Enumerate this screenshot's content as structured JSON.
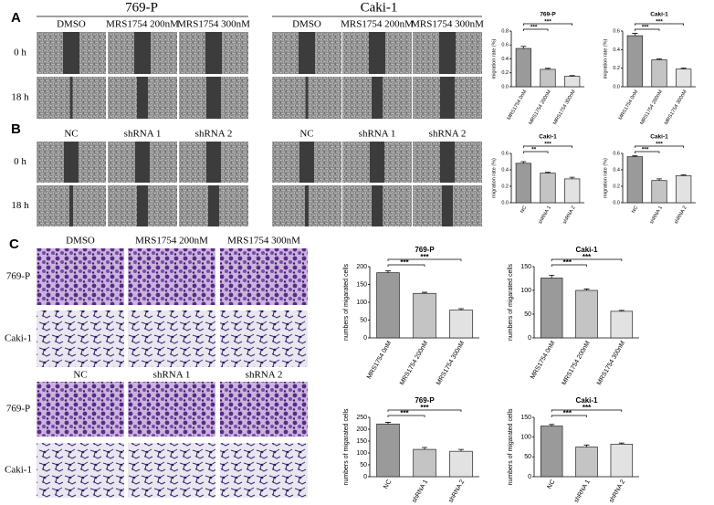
{
  "figure": {
    "panel_labels": [
      "A",
      "B",
      "C"
    ],
    "wound_groups": [
      "769-P",
      "Caki-1"
    ],
    "wound_rows": [
      "0 h",
      "18 h"
    ],
    "wound_columns": [
      [
        "DMSO",
        "MRS1754 200nM",
        "MRS1754 300nM"
      ],
      [
        "NC",
        "shRNA 1",
        "shRNA 2"
      ]
    ],
    "transwell_columns": [
      [
        "DMSO",
        "MRS1754 200nM",
        "MRS1754 300nM"
      ],
      [
        "NC",
        "shRNA 1",
        "shRNA 2"
      ]
    ],
    "transwell_rows": [
      "769-P",
      "Caki-1"
    ]
  },
  "chart_data": [
    {
      "type": "bar",
      "title": "769-P",
      "ylabel": "migration rate (%)",
      "categories": [
        "MRS1754 0nM",
        "MRS1754 200nM",
        "MRS1754 300nM"
      ],
      "values": [
        0.55,
        0.25,
        0.15
      ],
      "errors": [
        0.03,
        0.015,
        0.01
      ],
      "colors": [
        "#9a9a9a",
        "#c4c4c4",
        "#e2e2e2"
      ],
      "ylim": [
        0,
        0.8
      ],
      "yticks": [
        {
          "value": 0,
          "label": "0.0"
        },
        0.2,
        0.4,
        0.6,
        0.8
      ],
      "annotations": [
        "***",
        "***"
      ]
    },
    {
      "type": "bar",
      "title": "Caki-1",
      "ylabel": "migration rate (%)",
      "categories": [
        "MRS1754 0nM",
        "MRS1754 200nM",
        "MRS1754 300nM"
      ],
      "values": [
        0.55,
        0.29,
        0.19
      ],
      "errors": [
        0.025,
        0.01,
        0.01
      ],
      "colors": [
        "#9a9a9a",
        "#c4c4c4",
        "#e2e2e2"
      ],
      "ylim": [
        0,
        0.6
      ],
      "yticks": [
        {
          "value": 0,
          "label": "0.0"
        },
        0.2,
        0.4,
        0.6
      ],
      "annotations": [
        "***",
        "***"
      ]
    },
    {
      "type": "bar",
      "title": "Caki-1",
      "ylabel": "migration rate (%)",
      "categories": [
        "NC",
        "shRNA 1",
        "shRNA 2"
      ],
      "values": [
        0.48,
        0.36,
        0.29
      ],
      "errors": [
        0.02,
        0.01,
        0.02
      ],
      "colors": [
        "#9a9a9a",
        "#c4c4c4",
        "#e2e2e2"
      ],
      "ylim": [
        0,
        0.6
      ],
      "yticks": [
        {
          "value": 0,
          "label": "0.0"
        },
        0.2,
        0.4,
        0.6
      ],
      "annotations": [
        "**",
        "***"
      ]
    },
    {
      "type": "bar",
      "title": "Caki-1",
      "ylabel": "migration rate (%)",
      "categories": [
        "NC",
        "shRNA 1",
        "shRNA 2"
      ],
      "values": [
        0.56,
        0.27,
        0.33
      ],
      "errors": [
        0.01,
        0.02,
        0.01
      ],
      "colors": [
        "#9a9a9a",
        "#c4c4c4",
        "#e2e2e2"
      ],
      "ylim": [
        0,
        0.6
      ],
      "yticks": [
        {
          "value": 0,
          "label": "0.0"
        },
        0.2,
        0.4,
        0.6
      ],
      "annotations": [
        "***",
        "***"
      ]
    },
    {
      "type": "bar",
      "title": "769-P",
      "ylabel": "numbers of migarated cells",
      "categories": [
        "MRS1754 0nM",
        "MRS1754 200nM",
        "MRS1754 300nM"
      ],
      "values": [
        183,
        125,
        78
      ],
      "errors": [
        5,
        3,
        4
      ],
      "colors": [
        "#9a9a9a",
        "#c4c4c4",
        "#e2e2e2"
      ],
      "ylim": [
        0,
        200
      ],
      "yticks": [
        0,
        50,
        100,
        150,
        200
      ],
      "annotations": [
        "***",
        "***"
      ]
    },
    {
      "type": "bar",
      "title": "Caki-1",
      "ylabel": "numbers of migarated cells",
      "categories": [
        "MRS1754 0nM",
        "MRS1754 200nM",
        "MRS1754 300nM"
      ],
      "values": [
        126,
        100,
        56
      ],
      "errors": [
        6,
        3,
        2
      ],
      "colors": [
        "#9a9a9a",
        "#c4c4c4",
        "#e2e2e2"
      ],
      "ylim": [
        0,
        150
      ],
      "yticks": [
        0,
        50,
        100,
        150
      ],
      "annotations": [
        "***",
        "***"
      ]
    },
    {
      "type": "bar",
      "title": "769-P",
      "ylabel": "numbers of migarated cells",
      "categories": [
        "NC",
        "shRNA 1",
        "shRNA 2"
      ],
      "values": [
        222,
        115,
        107
      ],
      "errors": [
        7,
        8,
        8
      ],
      "colors": [
        "#9a9a9a",
        "#c4c4c4",
        "#e2e2e2"
      ],
      "ylim": [
        0,
        250
      ],
      "yticks": [
        0,
        50,
        100,
        150,
        200,
        250
      ],
      "annotations": [
        "***",
        "***"
      ]
    },
    {
      "type": "bar",
      "title": "Caki-1",
      "ylabel": "numbers of migarated cells",
      "categories": [
        "NC",
        "shRNA 1",
        "shRNA 2"
      ],
      "values": [
        128,
        75,
        82
      ],
      "errors": [
        4,
        5,
        3
      ],
      "colors": [
        "#9a9a9a",
        "#c4c4c4",
        "#e2e2e2"
      ],
      "ylim": [
        0,
        150
      ],
      "yticks": [
        0,
        50,
        100,
        150
      ],
      "annotations": [
        "***",
        "***"
      ]
    }
  ]
}
